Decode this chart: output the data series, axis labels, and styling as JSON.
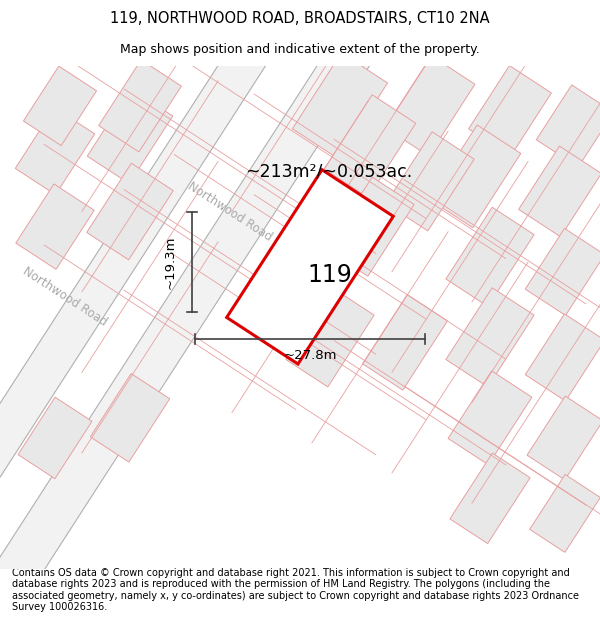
{
  "title_line1": "119, NORTHWOOD ROAD, BROADSTAIRS, CT10 2NA",
  "title_line2": "Map shows position and indicative extent of the property.",
  "footer_text": "Contains OS data © Crown copyright and database right 2021. This information is subject to Crown copyright and database rights 2023 and is reproduced with the permission of HM Land Registry. The polygons (including the associated geometry, namely x, y co-ordinates) are subject to Crown copyright and database rights 2023 Ordnance Survey 100026316.",
  "area_label": "~213m²/~0.053ac.",
  "property_number": "119",
  "width_label": "~27.8m",
  "height_label": "~19.3m",
  "road_label_upper": "Northwood Road",
  "road_label_lower": "Northwood Road",
  "map_bg_color": "#ffffff",
  "property_fill": "#ffffff",
  "property_edge_color": "#dd0000",
  "other_fill": "#e8e8e8",
  "road_fill": "#f2f2f2",
  "road_edge_color": "#b0b0b0",
  "dim_line_color": "#404040",
  "plot_edge_color": "#e8a0a0",
  "road_text_color": "#aaaaaa",
  "title_fontsize": 10.5,
  "subtitle_fontsize": 9.0,
  "footer_fontsize": 7.0
}
